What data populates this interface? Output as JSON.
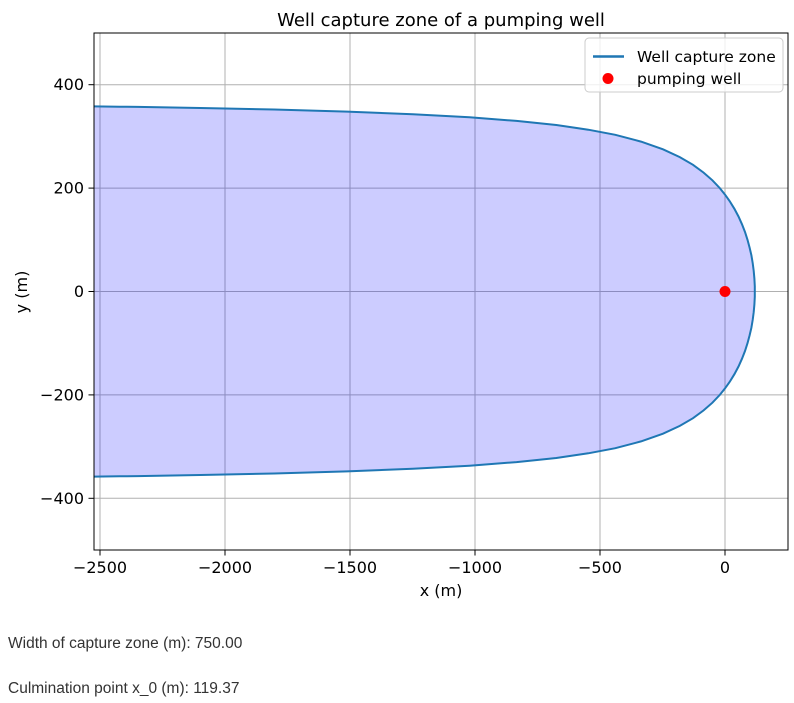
{
  "chart_data": {
    "type": "line",
    "title": "Well capture zone of a pumping well",
    "xlabel": "x (m)",
    "ylabel": "y (m)",
    "xlim": [
      -2524,
      252
    ],
    "ylim": [
      -500,
      500
    ],
    "grid": true,
    "x_ticks": {
      "values": [
        -2500,
        -2000,
        -1500,
        -1000,
        -500,
        0
      ],
      "labels": [
        "−2500",
        "−2000",
        "−1500",
        "−1000",
        "−500",
        "0"
      ]
    },
    "y_ticks": {
      "values": [
        -400,
        -200,
        0,
        200,
        400
      ],
      "labels": [
        "−400",
        "−200",
        "0",
        "200",
        "400"
      ]
    },
    "legend_position": "upper right",
    "series": [
      {
        "name": "Well capture zone",
        "type": "line+fill",
        "line_color": "#1f77b4",
        "fill_color": "rgba(0,0,255,0.2)",
        "symmetric_about_y0": true,
        "boundary_upper_xy": [
          [
            -2530,
            358.2
          ],
          [
            -2421,
            357.5
          ],
          [
            -2349,
            357.0
          ],
          [
            -2099,
            355.0
          ],
          [
            -1804,
            352.0
          ],
          [
            -1512,
            348.0
          ],
          [
            -1249,
            343.0
          ],
          [
            -1022,
            337.0
          ],
          [
            -834,
            330.0
          ],
          [
            -675,
            322.0
          ],
          [
            -547,
            313.0
          ],
          [
            -439,
            303.0
          ],
          [
            -336,
            290.0
          ],
          [
            -248,
            275.0
          ],
          [
            -181,
            260.0
          ],
          [
            -128,
            245.0
          ],
          [
            -85.5,
            230.0
          ],
          [
            -50.4,
            215.0
          ],
          [
            -21.0,
            200.0
          ],
          [
            0.0,
            187.5
          ],
          [
            18.4,
            175.0
          ],
          [
            37.5,
            160.0
          ],
          [
            53.9,
            145.0
          ],
          [
            68.0,
            130.0
          ],
          [
            79.9,
            115.0
          ],
          [
            90.0,
            100.0
          ],
          [
            98.5,
            85.0
          ],
          [
            105.4,
            70.0
          ],
          [
            110.8,
            55.0
          ],
          [
            114.9,
            40.0
          ],
          [
            117.6,
            25.0
          ],
          [
            119.1,
            10.0
          ],
          [
            119.37,
            0.0
          ]
        ]
      },
      {
        "name": "pumping well",
        "type": "scatter",
        "color": "#ff0000",
        "points": [
          [
            0,
            0
          ]
        ]
      }
    ]
  },
  "results": {
    "width_line": "Width of capture zone (m): 750.00",
    "culmination_line": "Culmination point x_0 (m): 119.37"
  },
  "colors": {
    "curve": "#1f77b4",
    "fill": "rgba(0,0,255,0.2)",
    "well_marker": "#ff0000",
    "grid": "#b0b0b0",
    "spine": "#000000",
    "legend_border": "#cccccc",
    "result_text": "#333333"
  }
}
